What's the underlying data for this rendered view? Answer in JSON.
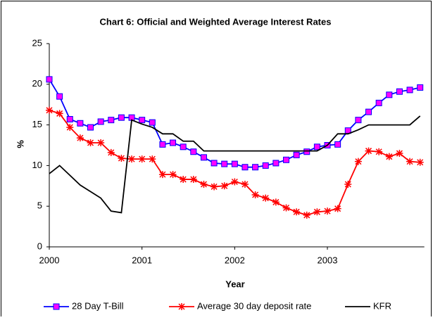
{
  "chart_data": {
    "type": "line",
    "title": "Chart 6: Official and Weighted Average Interest Rates",
    "x_label": "Year",
    "y_label": "%",
    "categories": [
      "2000",
      null,
      null,
      null,
      null,
      null,
      null,
      null,
      null,
      "2001",
      null,
      null,
      null,
      null,
      null,
      null,
      null,
      null,
      "2002",
      null,
      null,
      null,
      null,
      null,
      null,
      null,
      null,
      "2003",
      null,
      null,
      null,
      null,
      null,
      null,
      null,
      null,
      null
    ],
    "series": [
      {
        "name": "28 Day T-Bill",
        "color": "#0000ff",
        "marker": "square",
        "marker_color": "#ff00ff",
        "values": [
          20.6,
          18.5,
          15.7,
          15.2,
          14.7,
          15.4,
          15.6,
          15.9,
          15.9,
          15.6,
          15.3,
          12.6,
          12.8,
          12.3,
          11.7,
          11.0,
          10.3,
          10.2,
          10.2,
          9.8,
          9.8,
          10.0,
          10.3,
          10.7,
          11.3,
          11.7,
          12.3,
          12.5,
          12.6,
          14.3,
          15.6,
          16.6,
          17.7,
          18.7,
          19.1,
          19.3,
          19.6
        ]
      },
      {
        "name": "Average 30 day deposit rate",
        "color": "#ff0000",
        "marker": "star",
        "marker_color": "#ff0000",
        "values": [
          16.8,
          16.4,
          14.7,
          13.4,
          12.8,
          12.8,
          11.6,
          10.9,
          10.8,
          10.8,
          10.8,
          8.9,
          8.9,
          8.3,
          8.3,
          7.7,
          7.4,
          7.5,
          8.0,
          7.7,
          6.4,
          6.0,
          5.5,
          4.8,
          4.3,
          3.9,
          4.3,
          4.4,
          4.7,
          7.7,
          10.5,
          11.8,
          11.7,
          11.1,
          11.5,
          10.5,
          10.4
        ]
      },
      {
        "name": "KFR",
        "color": "#000000",
        "marker": null,
        "marker_color": null,
        "values": [
          9.0,
          10.0,
          8.8,
          7.6,
          6.8,
          6.0,
          4.4,
          4.2,
          15.6,
          15.1,
          14.7,
          13.9,
          13.9,
          13.0,
          13.0,
          11.8,
          11.8,
          11.8,
          11.8,
          11.8,
          11.8,
          11.8,
          11.8,
          11.8,
          11.8,
          11.8,
          11.8,
          12.5,
          13.9,
          13.9,
          14.4,
          15.0,
          15.0,
          15.0,
          15.0,
          15.0,
          16.1
        ]
      }
    ],
    "ylim": [
      0,
      25
    ],
    "yticks": [
      0,
      5,
      10,
      15,
      20,
      25
    ],
    "grid": false,
    "legend": "bottom"
  }
}
